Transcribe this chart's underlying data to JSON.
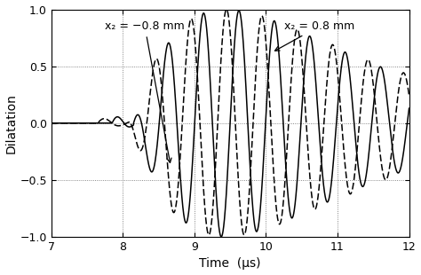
{
  "xlim": [
    7,
    12
  ],
  "ylim": [
    -1,
    1
  ],
  "xlabel": "Time  (μs)",
  "ylabel": "Dilatation",
  "xticks": [
    7,
    8,
    9,
    10,
    11,
    12
  ],
  "yticks": [
    -1,
    -0.5,
    0,
    0.5,
    1
  ],
  "bg_color": "#ffffff",
  "annotation_x2_neg": "x₂ = −0.8 mm",
  "annotation_x2_pos": "x₂ = 0.8 mm"
}
